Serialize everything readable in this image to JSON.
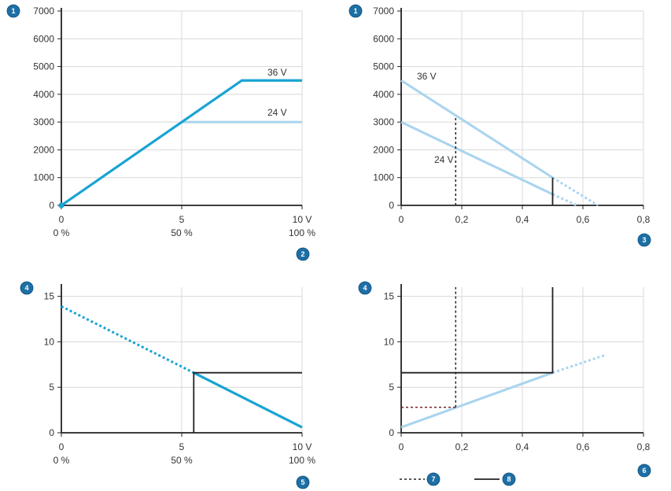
{
  "colors": {
    "primary_line": "#1aa3d4",
    "light_line": "#a9d4ee",
    "axis": "#222222",
    "grid": "#d8d8d8",
    "dashed": "#222222",
    "dashed_red": "#7a1f2b",
    "badge": "#1d6fa5"
  },
  "badges": {
    "b1": "1",
    "b2": "2",
    "b3": "3",
    "b4": "4",
    "b5": "5",
    "b6": "6",
    "b7": "7",
    "b8": "8"
  },
  "chart_data": [
    {
      "type": "line",
      "yticks": [
        "0",
        "1000",
        "2000",
        "3000",
        "4000",
        "5000",
        "6000",
        "7000"
      ],
      "xticks": [
        "0",
        "5",
        "10 V"
      ],
      "xticks2": [
        "0 %",
        "50 %",
        "100 %"
      ],
      "ylim": [
        0,
        7000
      ],
      "xlim": [
        0,
        10
      ],
      "grid": true,
      "series": [
        {
          "name": "36 V",
          "x": [
            0,
            7.5,
            10
          ],
          "y": [
            0,
            4500,
            4500
          ]
        },
        {
          "name": "24 V",
          "x": [
            0,
            5,
            10
          ],
          "y": [
            0,
            3000,
            3000
          ]
        }
      ]
    },
    {
      "type": "line",
      "yticks": [
        "0",
        "1000",
        "2000",
        "3000",
        "4000",
        "5000",
        "6000",
        "7000"
      ],
      "xticks": [
        "0",
        "0,2",
        "0,4",
        "0,6",
        "0,8"
      ],
      "ylim": [
        0,
        7000
      ],
      "xlim": [
        0,
        0.8
      ],
      "grid": true,
      "series": [
        {
          "name": "36 V",
          "x": [
            0,
            0.5
          ],
          "y": [
            4500,
            1000
          ],
          "dotted_to": [
            0.65,
            0
          ]
        },
        {
          "name": "24 V",
          "x": [
            0,
            0.5
          ],
          "y": [
            3000,
            400
          ],
          "dotted_to": [
            0.58,
            0
          ]
        }
      ],
      "markers": {
        "dashed_x": 0.18,
        "dashed_y": 3200,
        "solid_x": 0.5,
        "solid_y": 1000
      }
    },
    {
      "type": "line",
      "yticks": [
        "0",
        "5",
        "10",
        "15"
      ],
      "xticks": [
        "0",
        "5",
        "10 V"
      ],
      "xticks2": [
        "0 %",
        "50 %",
        "100 %"
      ],
      "ylim": [
        0,
        16
      ],
      "xlim": [
        0,
        10
      ],
      "grid": true,
      "series": [
        {
          "x": [
            5.5,
            10
          ],
          "y": [
            6.6,
            0.6
          ],
          "dotted_from": [
            0,
            13.9
          ]
        }
      ],
      "markers": {
        "solid_x": 5.5,
        "solid_y": 6.6
      }
    },
    {
      "type": "line",
      "yticks": [
        "0",
        "5",
        "10",
        "15"
      ],
      "xticks": [
        "0",
        "0,2",
        "0,4",
        "0,6",
        "0,8"
      ],
      "ylim": [
        0,
        16
      ],
      "xlim": [
        0,
        0.8
      ],
      "grid": true,
      "series": [
        {
          "x": [
            0,
            0.5
          ],
          "y": [
            0.6,
            6.6
          ],
          "dotted_to": [
            0.67,
            8.5
          ]
        }
      ],
      "markers": {
        "dashed_x": 0.18,
        "dashed_y": 2.8,
        "solid_x": 0.5,
        "solid_y": 6.6
      }
    }
  ]
}
